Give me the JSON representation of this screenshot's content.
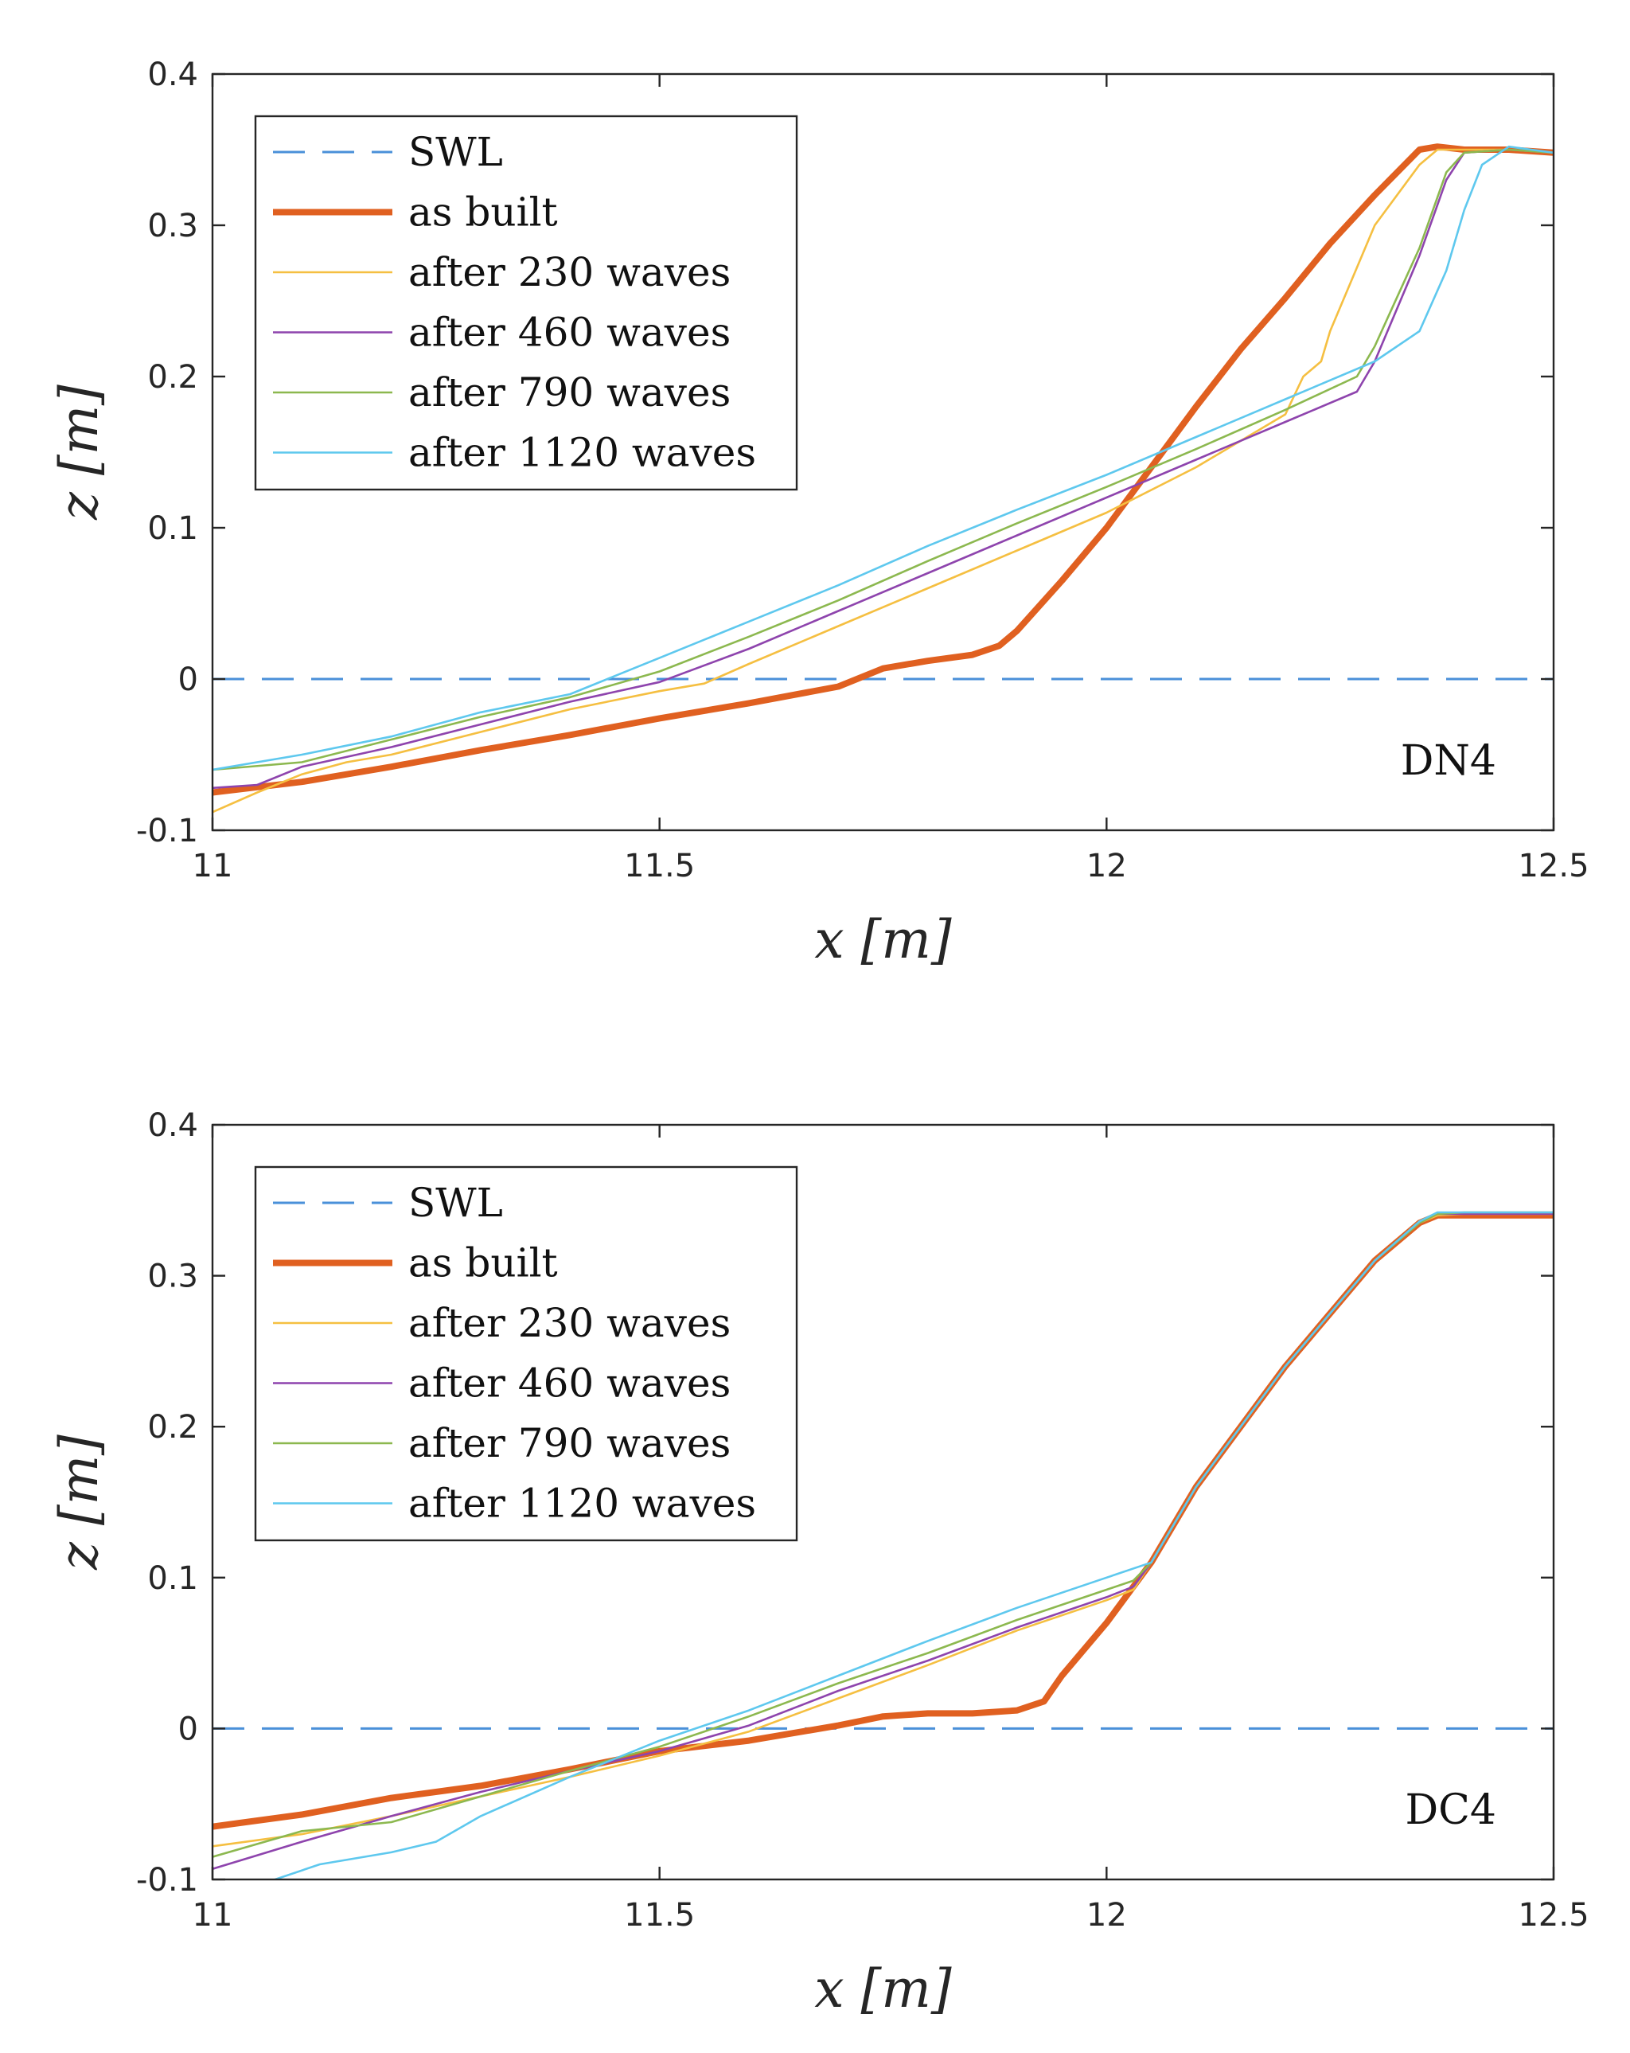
{
  "chart_data": [
    {
      "type": "line",
      "annotation": "DN4",
      "xlabel": "x [m]",
      "ylabel": "z [m]",
      "xlim": [
        11,
        12.5
      ],
      "ylim": [
        -0.1,
        0.4
      ],
      "xticks": [
        11,
        11.5,
        12,
        12.5
      ],
      "xtick_labels": [
        "11",
        "11.5",
        "12",
        "12.5"
      ],
      "yticks": [
        -0.1,
        0,
        0.1,
        0.2,
        0.3,
        0.4
      ],
      "ytick_labels": [
        "-0.1",
        "0",
        "0.1",
        "0.2",
        "0.3",
        "0.4"
      ],
      "grid": false,
      "legend_position": "top-left",
      "series": [
        {
          "name": "SWL",
          "color": "#4a90d9",
          "style": "dashed",
          "x": [
            11,
            12.5
          ],
          "y": [
            0,
            0
          ]
        },
        {
          "name": "as built",
          "color": "#e06020",
          "style": "bold",
          "x": [
            11,
            11.1,
            11.2,
            11.3,
            11.4,
            11.5,
            11.6,
            11.7,
            11.75,
            11.8,
            11.85,
            11.88,
            11.9,
            11.95,
            12.0,
            12.05,
            12.1,
            12.15,
            12.2,
            12.25,
            12.3,
            12.35,
            12.37,
            12.4,
            12.45,
            12.5
          ],
          "y": [
            -0.075,
            -0.068,
            -0.058,
            -0.047,
            -0.037,
            -0.026,
            -0.016,
            -0.005,
            0.007,
            0.012,
            0.016,
            0.022,
            0.032,
            0.065,
            0.1,
            0.14,
            0.18,
            0.218,
            0.252,
            0.288,
            0.32,
            0.35,
            0.352,
            0.35,
            0.35,
            0.348
          ]
        },
        {
          "name": "after 230 waves",
          "color": "#f5bf41",
          "style": "thin",
          "x": [
            11,
            11.05,
            11.1,
            11.15,
            11.2,
            11.3,
            11.4,
            11.5,
            11.55,
            11.6,
            11.7,
            11.8,
            11.9,
            12.0,
            12.1,
            12.2,
            12.22,
            12.24,
            12.25,
            12.3,
            12.35,
            12.37,
            12.4,
            12.45,
            12.5
          ],
          "y": [
            -0.088,
            -0.075,
            -0.063,
            -0.055,
            -0.05,
            -0.035,
            -0.02,
            -0.008,
            -0.003,
            0.01,
            0.035,
            0.06,
            0.085,
            0.11,
            0.14,
            0.175,
            0.2,
            0.21,
            0.23,
            0.3,
            0.34,
            0.35,
            0.35,
            0.35,
            0.348
          ]
        },
        {
          "name": "after 460 waves",
          "color": "#8e44ad",
          "style": "thin",
          "x": [
            11,
            11.05,
            11.1,
            11.2,
            11.3,
            11.4,
            11.5,
            11.6,
            11.7,
            11.8,
            11.9,
            12.0,
            12.1,
            12.2,
            12.28,
            12.3,
            12.35,
            12.38,
            12.4,
            12.45,
            12.5
          ],
          "y": [
            -0.072,
            -0.07,
            -0.058,
            -0.045,
            -0.03,
            -0.015,
            -0.002,
            0.02,
            0.045,
            0.07,
            0.095,
            0.12,
            0.145,
            0.17,
            0.19,
            0.21,
            0.28,
            0.33,
            0.348,
            0.35,
            0.348
          ]
        },
        {
          "name": "after 790 waves",
          "color": "#8cb84f",
          "style": "thin",
          "x": [
            11,
            11.1,
            11.2,
            11.3,
            11.4,
            11.5,
            11.6,
            11.7,
            11.8,
            11.9,
            12.0,
            12.1,
            12.2,
            12.28,
            12.3,
            12.35,
            12.38,
            12.4,
            12.45,
            12.5
          ],
          "y": [
            -0.06,
            -0.055,
            -0.04,
            -0.025,
            -0.012,
            0.005,
            0.028,
            0.052,
            0.078,
            0.103,
            0.127,
            0.152,
            0.178,
            0.2,
            0.22,
            0.285,
            0.335,
            0.348,
            0.35,
            0.348
          ]
        },
        {
          "name": "after 1120 waves",
          "color": "#5ec8ee",
          "style": "thin",
          "x": [
            11,
            11.1,
            11.2,
            11.3,
            11.4,
            11.45,
            11.5,
            11.6,
            11.7,
            11.8,
            11.9,
            12.0,
            12.1,
            12.2,
            12.3,
            12.35,
            12.38,
            12.4,
            12.42,
            12.45,
            12.5
          ],
          "y": [
            -0.06,
            -0.05,
            -0.038,
            -0.022,
            -0.01,
            0.002,
            0.014,
            0.038,
            0.062,
            0.088,
            0.112,
            0.135,
            0.16,
            0.185,
            0.21,
            0.23,
            0.27,
            0.31,
            0.34,
            0.352,
            0.348
          ]
        }
      ]
    },
    {
      "type": "line",
      "annotation": "DC4",
      "xlabel": "x [m]",
      "ylabel": "z [m]",
      "xlim": [
        11,
        12.5
      ],
      "ylim": [
        -0.1,
        0.4
      ],
      "xticks": [
        11,
        11.5,
        12,
        12.5
      ],
      "xtick_labels": [
        "11",
        "11.5",
        "12",
        "12.5"
      ],
      "yticks": [
        -0.1,
        0,
        0.1,
        0.2,
        0.3,
        0.4
      ],
      "ytick_labels": [
        "-0.1",
        "0",
        "0.1",
        "0.2",
        "0.3",
        "0.4"
      ],
      "grid": false,
      "legend_position": "top-left",
      "series": [
        {
          "name": "SWL",
          "color": "#4a90d9",
          "style": "dashed",
          "x": [
            11,
            12.5
          ],
          "y": [
            0,
            0
          ]
        },
        {
          "name": "as built",
          "color": "#e06020",
          "style": "bold",
          "x": [
            11,
            11.1,
            11.2,
            11.3,
            11.4,
            11.5,
            11.6,
            11.7,
            11.75,
            11.8,
            11.85,
            11.9,
            11.93,
            11.95,
            12.0,
            12.05,
            12.1,
            12.2,
            12.3,
            12.35,
            12.37,
            12.4,
            12.5
          ],
          "y": [
            -0.065,
            -0.057,
            -0.046,
            -0.038,
            -0.027,
            -0.015,
            -0.008,
            0.002,
            0.008,
            0.01,
            0.01,
            0.012,
            0.018,
            0.035,
            0.07,
            0.11,
            0.16,
            0.24,
            0.31,
            0.335,
            0.34,
            0.34,
            0.34
          ]
        },
        {
          "name": "after 230 waves",
          "color": "#f5bf41",
          "style": "thin",
          "x": [
            11,
            11.1,
            11.2,
            11.3,
            11.4,
            11.5,
            11.6,
            11.7,
            11.8,
            11.9,
            12.0,
            12.03,
            12.05,
            12.1,
            12.2,
            12.3,
            12.35,
            12.37,
            12.4,
            12.5
          ],
          "y": [
            -0.078,
            -0.07,
            -0.058,
            -0.045,
            -0.032,
            -0.018,
            -0.002,
            0.02,
            0.042,
            0.065,
            0.085,
            0.092,
            0.11,
            0.16,
            0.24,
            0.31,
            0.335,
            0.34,
            0.341,
            0.341
          ]
        },
        {
          "name": "after 460 waves",
          "color": "#8e44ad",
          "style": "thin",
          "x": [
            11,
            11.1,
            11.2,
            11.3,
            11.4,
            11.5,
            11.6,
            11.7,
            11.8,
            11.9,
            12.0,
            12.03,
            12.05,
            12.1,
            12.2,
            12.3,
            12.35,
            12.37,
            12.4,
            12.5
          ],
          "y": [
            -0.093,
            -0.075,
            -0.058,
            -0.042,
            -0.028,
            -0.015,
            0.002,
            0.025,
            0.045,
            0.067,
            0.087,
            0.094,
            0.11,
            0.16,
            0.24,
            0.31,
            0.335,
            0.341,
            0.341,
            0.341
          ]
        },
        {
          "name": "after 790 waves",
          "color": "#8cb84f",
          "style": "thin",
          "x": [
            11,
            11.1,
            11.2,
            11.3,
            11.4,
            11.5,
            11.6,
            11.7,
            11.8,
            11.9,
            12.0,
            12.03,
            12.05,
            12.1,
            12.2,
            12.3,
            12.35,
            12.37,
            12.4,
            12.5
          ],
          "y": [
            -0.085,
            -0.068,
            -0.062,
            -0.045,
            -0.028,
            -0.012,
            0.008,
            0.03,
            0.05,
            0.072,
            0.092,
            0.098,
            0.11,
            0.16,
            0.24,
            0.31,
            0.335,
            0.341,
            0.342,
            0.342
          ]
        },
        {
          "name": "after 1120 waves",
          "color": "#5ec8ee",
          "style": "thin",
          "x": [
            11.07,
            11.12,
            11.2,
            11.25,
            11.3,
            11.4,
            11.5,
            11.6,
            11.7,
            11.8,
            11.9,
            12.0,
            12.05,
            12.1,
            12.2,
            12.3,
            12.35,
            12.37,
            12.4,
            12.5
          ],
          "y": [
            -0.1,
            -0.09,
            -0.082,
            -0.075,
            -0.058,
            -0.032,
            -0.008,
            0.012,
            0.035,
            0.058,
            0.08,
            0.1,
            0.11,
            0.16,
            0.24,
            0.31,
            0.336,
            0.342,
            0.342,
            0.342
          ]
        }
      ]
    }
  ]
}
